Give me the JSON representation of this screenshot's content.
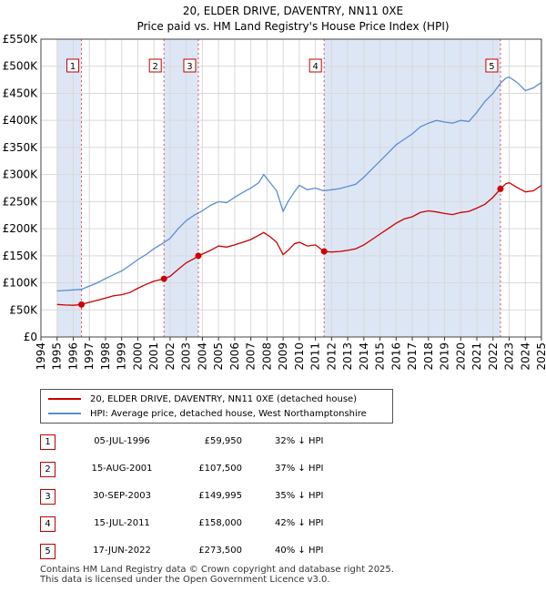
{
  "chart_data": {
    "type": "line",
    "title": "20, ELDER DRIVE, DAVENTRY, NN11 0XE",
    "subtitle": "Price paid vs. HM Land Registry's House Price Index (HPI)",
    "xlim": [
      1994,
      2025
    ],
    "ylim": [
      0,
      550000
    ],
    "x_ticks": [
      "1994",
      "1995",
      "1996",
      "1997",
      "1998",
      "1999",
      "2000",
      "2001",
      "2002",
      "2003",
      "2004",
      "2005",
      "2006",
      "2007",
      "2008",
      "2009",
      "2010",
      "2011",
      "2012",
      "2013",
      "2014",
      "2015",
      "2016",
      "2017",
      "2018",
      "2019",
      "2020",
      "2021",
      "2022",
      "2023",
      "2024",
      "2025"
    ],
    "y_ticks": [
      {
        "value": 0,
        "label": "£0"
      },
      {
        "value": 50000,
        "label": "£50K"
      },
      {
        "value": 100000,
        "label": "£100K"
      },
      {
        "value": 150000,
        "label": "£150K"
      },
      {
        "value": 200000,
        "label": "£200K"
      },
      {
        "value": 250000,
        "label": "£250K"
      },
      {
        "value": 300000,
        "label": "£300K"
      },
      {
        "value": 350000,
        "label": "£350K"
      },
      {
        "value": 400000,
        "label": "£400K"
      },
      {
        "value": 450000,
        "label": "£450K"
      },
      {
        "value": 500000,
        "label": "£500K"
      },
      {
        "value": 550000,
        "label": "£550K"
      }
    ],
    "shaded_ranges": [
      [
        1995.0,
        1996.51
      ],
      [
        2001.62,
        2003.75
      ],
      [
        2011.54,
        2022.46
      ],
      [
        2024.92,
        2025.0
      ]
    ],
    "series": [
      {
        "name": "20, ELDER DRIVE, DAVENTRY, NN11 0XE (detached house)",
        "color": "#cc0000",
        "x": [
          1995.0,
          1995.5,
          1996.0,
          1996.51,
          1997.0,
          1997.5,
          1998.0,
          1998.5,
          1999.0,
          1999.5,
          2000.0,
          2000.5,
          2001.0,
          2001.62,
          2002.0,
          2002.5,
          2003.0,
          2003.5,
          2003.75,
          2004.0,
          2004.5,
          2005.0,
          2005.5,
          2006.0,
          2006.5,
          2007.0,
          2007.5,
          2007.8,
          2008.2,
          2008.6,
          2009.0,
          2009.3,
          2009.7,
          2010.0,
          2010.5,
          2011.0,
          2011.54,
          2012.0,
          2012.5,
          2013.0,
          2013.5,
          2014.0,
          2014.5,
          2015.0,
          2015.5,
          2016.0,
          2016.5,
          2017.0,
          2017.5,
          2018.0,
          2018.5,
          2019.0,
          2019.5,
          2020.0,
          2020.5,
          2021.0,
          2021.5,
          2022.0,
          2022.46,
          2022.8,
          2023.0,
          2023.5,
          2024.0,
          2024.5,
          2025.0
        ],
        "y": [
          60000,
          59000,
          58500,
          59950,
          64000,
          68000,
          72000,
          76000,
          78000,
          82000,
          90000,
          97000,
          103000,
          107500,
          112000,
          125000,
          137000,
          145000,
          149995,
          153000,
          160000,
          168000,
          166000,
          170000,
          175000,
          180000,
          188000,
          193000,
          185000,
          175000,
          152000,
          160000,
          172000,
          175000,
          168000,
          170000,
          158000,
          157000,
          158000,
          160000,
          163000,
          170000,
          180000,
          190000,
          200000,
          210000,
          218000,
          222000,
          230000,
          233000,
          231000,
          228000,
          226000,
          230000,
          232000,
          238000,
          245000,
          258000,
          273500,
          283000,
          285000,
          276000,
          268000,
          270000,
          280000
        ]
      },
      {
        "name": "HPI: Average price, detached house, West Northamptonshire",
        "color": "#5b8ed0",
        "x": [
          1995.0,
          1995.5,
          1996.0,
          1996.5,
          1997.0,
          1997.5,
          1998.0,
          1998.5,
          1999.0,
          1999.5,
          2000.0,
          2000.5,
          2001.0,
          2001.5,
          2002.0,
          2002.5,
          2003.0,
          2003.5,
          2004.0,
          2004.5,
          2005.0,
          2005.5,
          2006.0,
          2006.5,
          2007.0,
          2007.5,
          2007.8,
          2008.2,
          2008.6,
          2009.0,
          2009.3,
          2009.7,
          2010.0,
          2010.5,
          2011.0,
          2011.5,
          2012.0,
          2012.5,
          2013.0,
          2013.5,
          2014.0,
          2014.5,
          2015.0,
          2015.5,
          2016.0,
          2016.5,
          2017.0,
          2017.5,
          2018.0,
          2018.5,
          2019.0,
          2019.5,
          2020.0,
          2020.5,
          2021.0,
          2021.5,
          2022.0,
          2022.5,
          2022.8,
          2023.0,
          2023.5,
          2024.0,
          2024.5,
          2025.0
        ],
        "y": [
          85000,
          86000,
          87000,
          88000,
          94000,
          100000,
          108000,
          115000,
          122000,
          132000,
          143000,
          152000,
          163000,
          172000,
          182000,
          200000,
          215000,
          225000,
          233000,
          243000,
          250000,
          248000,
          258000,
          267000,
          275000,
          285000,
          300000,
          285000,
          270000,
          232000,
          250000,
          268000,
          280000,
          272000,
          275000,
          270000,
          272000,
          274000,
          278000,
          282000,
          295000,
          310000,
          325000,
          340000,
          355000,
          365000,
          375000,
          388000,
          395000,
          400000,
          397000,
          395000,
          400000,
          398000,
          415000,
          435000,
          450000,
          470000,
          478000,
          480000,
          470000,
          455000,
          460000,
          470000
        ]
      }
    ],
    "markers": [
      {
        "label": "1",
        "x": 1996.51,
        "y": 59950
      },
      {
        "label": "2",
        "x": 2001.62,
        "y": 107500
      },
      {
        "label": "3",
        "x": 2003.75,
        "y": 149995
      },
      {
        "label": "4",
        "x": 2011.54,
        "y": 158000
      },
      {
        "label": "5",
        "x": 2022.46,
        "y": 273500
      }
    ]
  },
  "legend": {
    "property": "20, ELDER DRIVE, DAVENTRY, NN11 0XE (detached house)",
    "hpi": "HPI: Average price, detached house, West Northamptonshire"
  },
  "sales": [
    {
      "num": "1",
      "date": "05-JUL-1996",
      "price": "£59,950",
      "hpi": "32% ↓ HPI"
    },
    {
      "num": "2",
      "date": "15-AUG-2001",
      "price": "£107,500",
      "hpi": "37% ↓ HPI"
    },
    {
      "num": "3",
      "date": "30-SEP-2003",
      "price": "£149,995",
      "hpi": "35% ↓ HPI"
    },
    {
      "num": "4",
      "date": "15-JUL-2011",
      "price": "£158,000",
      "hpi": "42% ↓ HPI"
    },
    {
      "num": "5",
      "date": "17-JUN-2022",
      "price": "£273,500",
      "hpi": "40% ↓ HPI"
    }
  ],
  "footer": {
    "line1": "Contains HM Land Registry data © Crown copyright and database right 2025.",
    "line2": "This data is licensed under the Open Government Licence v3.0."
  },
  "colors": {
    "property": "#cc0000",
    "hpi": "#5b8ed0",
    "shade": "#dde6f5",
    "grid": "#d9d9d9"
  }
}
